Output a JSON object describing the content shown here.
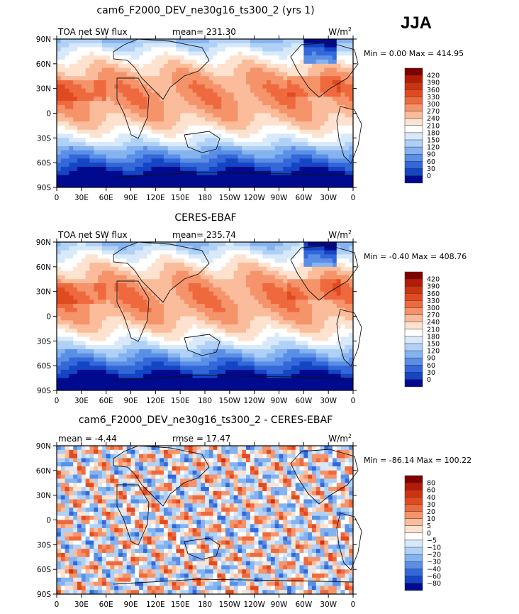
{
  "season": "JJA",
  "chart_data": [
    {
      "type": "heatmap",
      "title": "cam6_F2000_DEV_ne30g16_ts300_2 (yrs 1)",
      "left_label": "TOA net SW flux",
      "center_label": "mean=  231.30",
      "units_label": "W/m",
      "units_exp": "2",
      "minmax_label": "Min =    0.00 Max = 414.95",
      "min": 0.0,
      "max": 414.95,
      "mean": 231.3,
      "x_ticks": [
        "0",
        "30E",
        "60E",
        "90E",
        "120E",
        "150E",
        "180",
        "150W",
        "120W",
        "90W",
        "60W",
        "30W",
        "0"
      ],
      "y_ticks": [
        "90N",
        "60N",
        "30N",
        "0",
        "30S",
        "60S",
        "90S"
      ],
      "colorbar": {
        "levels": [
          "420",
          "390",
          "360",
          "330",
          "300",
          "270",
          "240",
          "210",
          "180",
          "150",
          "120",
          "90",
          "60",
          "30",
          "0"
        ],
        "colors": [
          "#800000",
          "#b31b06",
          "#cc3311",
          "#e04a20",
          "#ee6a3e",
          "#f5936a",
          "#fabc9a",
          "#fde3cf",
          "#ffffff",
          "#d7e9fb",
          "#b0d1f7",
          "#85b3f0",
          "#5b8fe6",
          "#3468d9",
          "#1445c4",
          "#000a8f"
        ]
      }
    },
    {
      "type": "heatmap",
      "title": "CERES-EBAF",
      "left_label": "TOA net SW flux",
      "center_label": "mean=  235.74",
      "units_label": "W/m",
      "units_exp": "2",
      "minmax_label": "Min =   -0.40 Max = 408.76",
      "min": -0.4,
      "max": 408.76,
      "mean": 235.74,
      "x_ticks": [
        "0",
        "30E",
        "60E",
        "90E",
        "120E",
        "150E",
        "180",
        "150W",
        "120W",
        "90W",
        "60W",
        "30W",
        "0"
      ],
      "y_ticks": [
        "90N",
        "60N",
        "30N",
        "0",
        "30S",
        "60S",
        "90S"
      ],
      "colorbar": {
        "levels": [
          "420",
          "390",
          "360",
          "330",
          "300",
          "270",
          "240",
          "210",
          "180",
          "150",
          "120",
          "90",
          "60",
          "30",
          "0"
        ],
        "colors": [
          "#800000",
          "#b31b06",
          "#cc3311",
          "#e04a20",
          "#ee6a3e",
          "#f5936a",
          "#fabc9a",
          "#fde3cf",
          "#ffffff",
          "#d7e9fb",
          "#b0d1f7",
          "#85b3f0",
          "#5b8fe6",
          "#3468d9",
          "#1445c4",
          "#000a8f"
        ]
      }
    },
    {
      "type": "heatmap",
      "title": "cam6_F2000_DEV_ne30g16_ts300_2 - CERES-EBAF",
      "left_label": "mean =   -4.44",
      "center_label": "rmse =   17.47",
      "units_label": "W/m",
      "units_exp": "2",
      "minmax_label": "Min = -86.14 Max = 100.22",
      "min": -86.14,
      "max": 100.22,
      "mean": -4.44,
      "rmse": 17.47,
      "x_ticks": [
        "0",
        "30E",
        "60E",
        "90E",
        "120E",
        "150E",
        "180",
        "150W",
        "120W",
        "90W",
        "60W",
        "30W",
        "0"
      ],
      "y_ticks": [
        "90N",
        "60N",
        "30N",
        "0",
        "30S",
        "60S",
        "90S"
      ],
      "colorbar": {
        "levels": [
          "80",
          "60",
          "40",
          "30",
          "20",
          "10",
          "5",
          "0",
          "−5",
          "−10",
          "−20",
          "−30",
          "−40",
          "−60",
          "−80"
        ],
        "colors": [
          "#800000",
          "#b31b06",
          "#cc3311",
          "#e04a20",
          "#ee6a3e",
          "#f5936a",
          "#fabc9a",
          "#fde3cf",
          "#ffffff",
          "#d7e9fb",
          "#b0d1f7",
          "#85b3f0",
          "#5b8fe6",
          "#3468d9",
          "#1445c4",
          "#000a8f"
        ]
      }
    }
  ]
}
